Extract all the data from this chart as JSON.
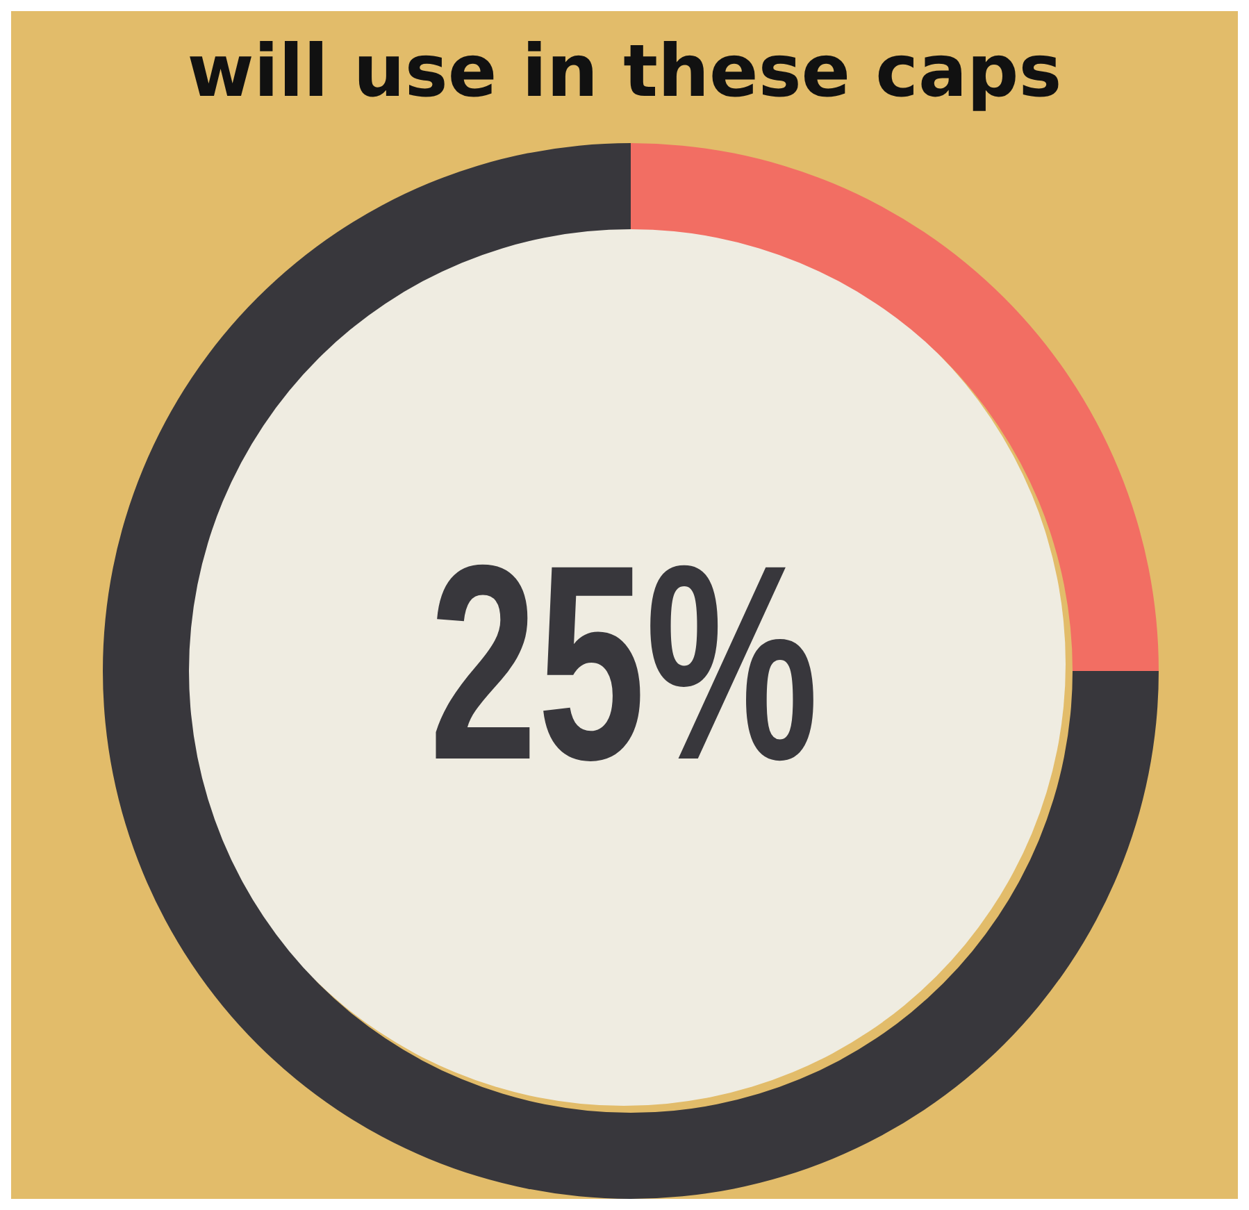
{
  "chart_data": {
    "type": "donut",
    "title": "will use in these caps",
    "categories": [
      null,
      null
    ],
    "values": [
      25,
      75
    ],
    "colors": [
      "#f26e63",
      "#38373c"
    ],
    "annotations": [
      "25%"
    ]
  }
}
